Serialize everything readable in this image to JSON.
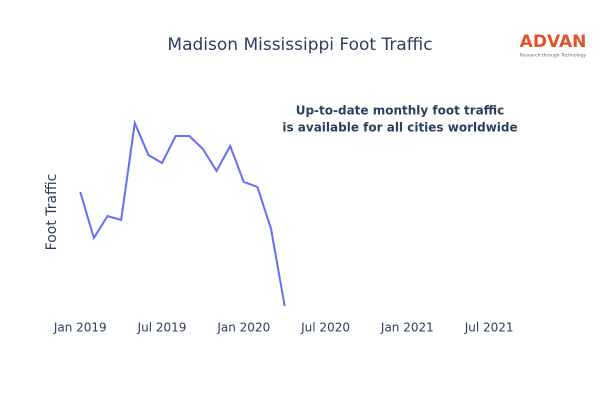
{
  "chart_data": {
    "type": "line",
    "title": "Madison Mississippi Foot Traffic",
    "logo": {
      "name": "ADVAN",
      "tagline": "Research through Technology"
    },
    "annotation": [
      "Up-to-date monthly foot traffic",
      "is available for all cities worldwide"
    ],
    "y_label": "Foot Traffic",
    "x": [
      "2019-01",
      "2019-02",
      "2019-03",
      "2019-04",
      "2019-05",
      "2019-06",
      "2019-07",
      "2019-08",
      "2019-09",
      "2019-10",
      "2019-11",
      "2019-12",
      "2020-01",
      "2020-02",
      "2020-03",
      "2020-04"
    ],
    "series": [
      {
        "name": "Foot Traffic",
        "color": "#636efa",
        "values": [
          64,
          41,
          52,
          50,
          98.5,
          82.5,
          78.5,
          92,
          92,
          85.5,
          74.5,
          87,
          69,
          66.5,
          45.5,
          7
        ]
      }
    ],
    "xlim": [
      "2018-11",
      "2021-10"
    ],
    "xticks": [
      {
        "value": "2019-01",
        "label": "Jan 2019"
      },
      {
        "value": "2019-07",
        "label": "Jul 2019"
      },
      {
        "value": "2020-01",
        "label": "Jan 2020"
      },
      {
        "value": "2020-07",
        "label": "Jul 2020"
      },
      {
        "value": "2021-01",
        "label": "Jan 2021"
      },
      {
        "value": "2021-07",
        "label": "Jul 2021"
      }
    ],
    "ylim": [
      0,
      110
    ]
  }
}
